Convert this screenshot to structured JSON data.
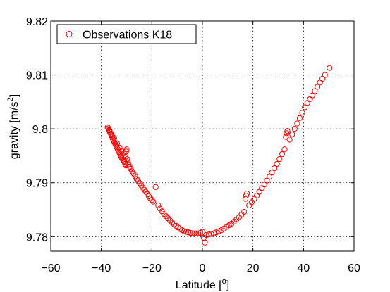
{
  "chart_data": {
    "type": "scatter",
    "xlabel": "Latitude [",
    "xlabel_sup": "o",
    "xlabel_end": "]",
    "ylabel": "gravity [m/s",
    "ylabel_sup": "2",
    "ylabel_end": "]",
    "xlim": [
      -60,
      60
    ],
    "ylim": [
      9.7773,
      9.82
    ],
    "xticks": [
      -60,
      -40,
      -20,
      0,
      20,
      40,
      60
    ],
    "xtick_labels": [
      "−60",
      "−40",
      "−20",
      "0",
      "20",
      "40",
      "60"
    ],
    "yticks": [
      9.78,
      9.79,
      9.8,
      9.81,
      9.82
    ],
    "ytick_labels": [
      "9.78",
      "9.79",
      "9.8",
      "9.81",
      "9.82"
    ],
    "grid": true,
    "legend": {
      "placement": "top-left",
      "entries": [
        "Observations K18"
      ]
    },
    "marker_color": "#ff0000",
    "series": [
      {
        "name": "Observations K18",
        "points": [
          [
            -37.5,
            9.8003
          ],
          [
            -37.2,
            9.8001
          ],
          [
            -36.9,
            9.7998
          ],
          [
            -36.6,
            9.7994
          ],
          [
            -36.3,
            9.7991
          ],
          [
            -36.0,
            9.7988
          ],
          [
            -35.7,
            9.7985
          ],
          [
            -35.4,
            9.7981
          ],
          [
            -35.1,
            9.7978
          ],
          [
            -34.8,
            9.7975
          ],
          [
            -34.5,
            9.7972
          ],
          [
            -34.2,
            9.7969
          ],
          [
            -33.9,
            9.7966
          ],
          [
            -33.6,
            9.7963
          ],
          [
            -33.3,
            9.796
          ],
          [
            -33.0,
            9.7957
          ],
          [
            -32.7,
            9.7954
          ],
          [
            -32.4,
            9.7951
          ],
          [
            -32.1,
            9.7948
          ],
          [
            -31.8,
            9.7945
          ],
          [
            -31.5,
            9.7943
          ],
          [
            -31.2,
            9.7941
          ],
          [
            -30.9,
            9.7939
          ],
          [
            -30.6,
            9.7935
          ],
          [
            -30.3,
            9.7932
          ],
          [
            -36.8,
            9.7997
          ],
          [
            -35.9,
            9.799
          ],
          [
            -34.9,
            9.7983
          ],
          [
            -33.8,
            9.7973
          ],
          [
            -32.8,
            9.7965
          ],
          [
            -31.9,
            9.7958
          ],
          [
            -30.8,
            9.7955
          ],
          [
            -30.2,
            9.7958
          ],
          [
            -30.0,
            9.7962
          ],
          [
            -30.5,
            9.7948
          ],
          [
            -29.8,
            9.7944
          ],
          [
            -29.5,
            9.7938
          ],
          [
            -29.2,
            9.7934
          ],
          [
            -28.8,
            9.793
          ],
          [
            -28.4,
            9.7926
          ],
          [
            -27.8,
            9.7921
          ],
          [
            -27.2,
            9.7917
          ],
          [
            -26.6,
            9.7912
          ],
          [
            -26.0,
            9.7907
          ],
          [
            -25.4,
            9.7903
          ],
          [
            -24.8,
            9.7899
          ],
          [
            -24.2,
            9.7895
          ],
          [
            -23.6,
            9.7891
          ],
          [
            -23.0,
            9.7887
          ],
          [
            -22.4,
            9.7883
          ],
          [
            -21.8,
            9.7879
          ],
          [
            -21.2,
            9.7875
          ],
          [
            -20.6,
            9.7871
          ],
          [
            -20.0,
            9.7868
          ],
          [
            -19.5,
            9.7865
          ],
          [
            -18.5,
            9.7892
          ],
          [
            -17.5,
            9.7858
          ],
          [
            -16.8,
            9.7852
          ],
          [
            -16.0,
            9.7847
          ],
          [
            -15.2,
            9.7842
          ],
          [
            -14.4,
            9.7838
          ],
          [
            -13.6,
            9.7834
          ],
          [
            -12.8,
            9.783
          ],
          [
            -12.0,
            9.7826
          ],
          [
            -11.2,
            9.7823
          ],
          [
            -10.4,
            9.782
          ],
          [
            -9.6,
            9.7817
          ],
          [
            -8.8,
            9.7814
          ],
          [
            -8.0,
            9.7812
          ],
          [
            -7.2,
            9.781
          ],
          [
            -6.4,
            9.7809
          ],
          [
            -5.6,
            9.7808
          ],
          [
            -4.8,
            9.7807
          ],
          [
            -4.0,
            9.7806
          ],
          [
            -3.2,
            9.7806
          ],
          [
            -2.4,
            9.7806
          ],
          [
            -1.6,
            9.7806
          ],
          [
            -0.8,
            9.7807
          ],
          [
            0.0,
            9.7809
          ],
          [
            0.5,
            9.7798
          ],
          [
            1.0,
            9.7789
          ],
          [
            1.5,
            9.7803
          ],
          [
            2.5,
            9.7804
          ],
          [
            3.5,
            9.7805
          ],
          [
            4.5,
            9.7806
          ],
          [
            5.5,
            9.7808
          ],
          [
            6.5,
            9.781
          ],
          [
            7.5,
            9.7812
          ],
          [
            8.5,
            9.7815
          ],
          [
            9.5,
            9.7818
          ],
          [
            10.5,
            9.7821
          ],
          [
            11.5,
            9.7824
          ],
          [
            12.5,
            9.7828
          ],
          [
            13.5,
            9.7832
          ],
          [
            14.5,
            9.7836
          ],
          [
            15.5,
            9.7841
          ],
          [
            16.5,
            9.7846
          ],
          [
            17.0,
            9.787
          ],
          [
            17.3,
            9.7876
          ],
          [
            17.6,
            9.788
          ],
          [
            18.5,
            9.7858
          ],
          [
            19.5,
            9.7864
          ],
          [
            20.5,
            9.787
          ],
          [
            21.5,
            9.7876
          ],
          [
            22.5,
            9.7883
          ],
          [
            23.5,
            9.789
          ],
          [
            24.5,
            9.7897
          ],
          [
            25.5,
            9.7904
          ],
          [
            26.5,
            9.7911
          ],
          [
            27.5,
            9.7919
          ],
          [
            28.5,
            9.7927
          ],
          [
            29.5,
            9.7935
          ],
          [
            30.5,
            9.7944
          ],
          [
            31.5,
            9.7953
          ],
          [
            32.5,
            9.7962
          ],
          [
            33.0,
            9.7985
          ],
          [
            33.3,
            9.7992
          ],
          [
            33.6,
            9.7996
          ],
          [
            34.5,
            9.798
          ],
          [
            35.5,
            9.799
          ],
          [
            36.5,
            9.8
          ],
          [
            37.5,
            9.801
          ],
          [
            38.5,
            9.802
          ],
          [
            39.5,
            9.803
          ],
          [
            40.5,
            9.804
          ],
          [
            41.5,
            9.8048
          ],
          [
            42.5,
            9.8055
          ],
          [
            43.5,
            9.8062
          ],
          [
            44.5,
            9.807
          ],
          [
            45.5,
            9.8078
          ],
          [
            46.5,
            9.8086
          ],
          [
            47.5,
            9.8093
          ],
          [
            48.5,
            9.81
          ],
          [
            50.3,
            9.8113
          ]
        ]
      }
    ]
  }
}
